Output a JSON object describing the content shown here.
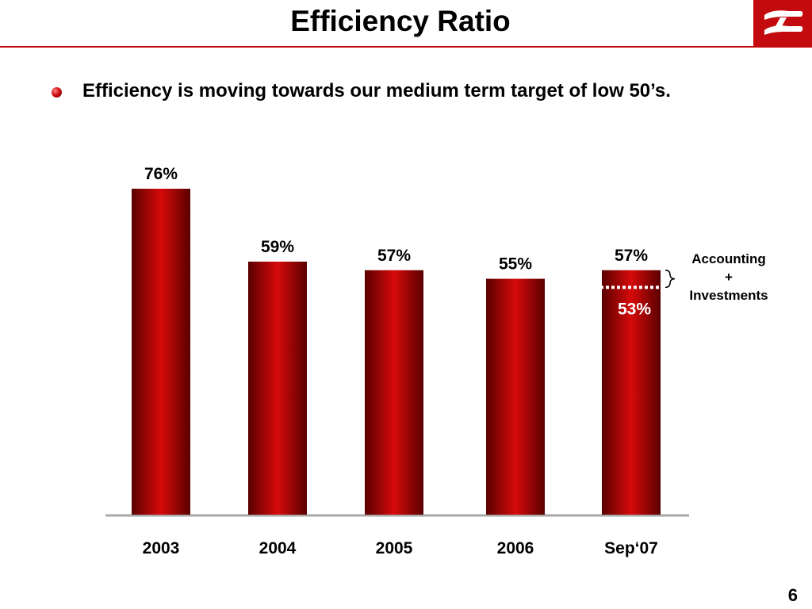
{
  "header": {
    "title": "Efficiency Ratio",
    "bullet": "Efficiency is moving towards our medium term target of low 50’s.",
    "page_number": "6"
  },
  "colors": {
    "accent": "#c20a0f",
    "bar_dark": "#5a0000",
    "bar_light": "#d60a0a",
    "axis": "#a8a8a8"
  },
  "chart_data": {
    "type": "bar",
    "title": "",
    "xlabel": "",
    "ylabel": "",
    "ylim": [
      0,
      76
    ],
    "grid": false,
    "categories": [
      "2003",
      "2004",
      "2005",
      "2006",
      "Sep‘07"
    ],
    "values": [
      76,
      59,
      57,
      55,
      57
    ],
    "value_labels": [
      "76%",
      "59%",
      "57%",
      "55%",
      "57%"
    ],
    "annotations": [
      {
        "category": "Sep‘07",
        "value": 53,
        "label": "53%",
        "bracket_text": [
          "Accounting",
          "+",
          "Investments"
        ]
      }
    ]
  }
}
